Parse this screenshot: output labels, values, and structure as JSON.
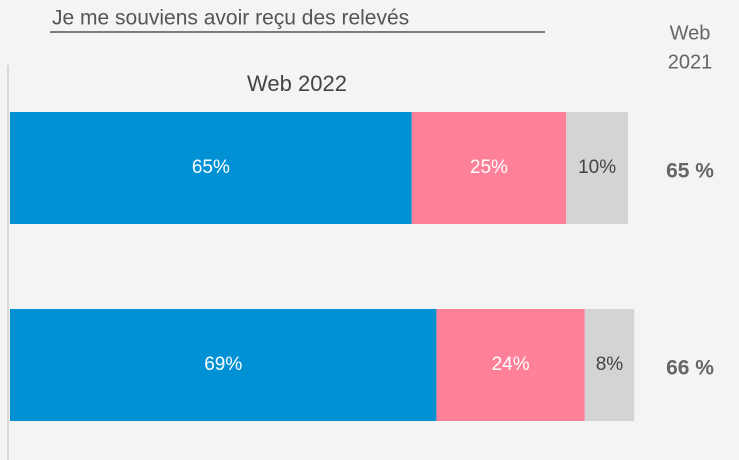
{
  "chart_data": {
    "type": "stacked-barh",
    "title": "Je me souviens avoir reçu des relevés",
    "subtitle": "Web 2022",
    "categories": [
      null,
      null
    ],
    "xlim": [
      0,
      100
    ],
    "series": [
      {
        "name": null,
        "color": "#0091d5",
        "label_color": "#ffffff",
        "values": [
          65,
          69
        ],
        "value_labels": [
          "65%",
          "69%"
        ]
      },
      {
        "name": null,
        "color": "#ff8199",
        "label_color": "#ffffff",
        "values": [
          25,
          24
        ],
        "value_labels": [
          "25%",
          "24%"
        ]
      },
      {
        "name": null,
        "color": "#d4d4d6",
        "label_color": "#444444",
        "values": [
          10,
          8
        ],
        "value_labels": [
          "10%",
          "8%"
        ]
      }
    ],
    "comparison": {
      "title": [
        "Web",
        "2021"
      ],
      "labels": [
        "65 %",
        "66 %"
      ]
    }
  }
}
